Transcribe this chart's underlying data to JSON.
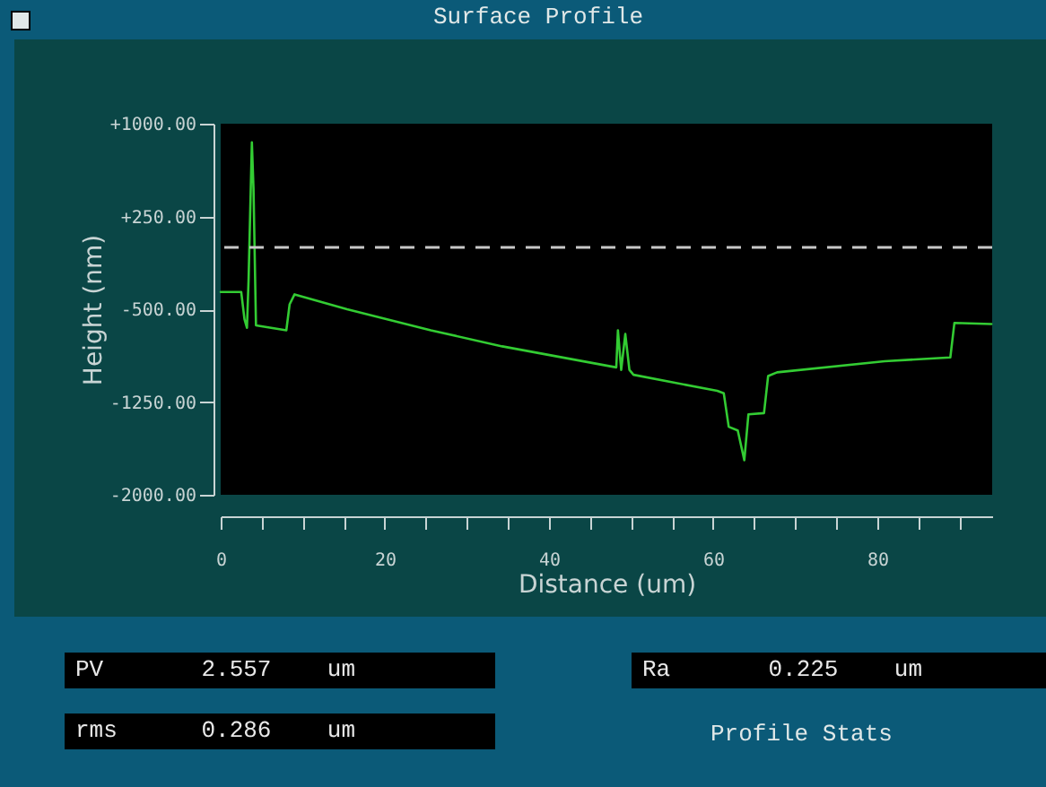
{
  "chart_data": {
    "type": "line",
    "title": "Surface Profile",
    "xlabel": "Distance (um)",
    "ylabel": "Height (nm)",
    "x": [
      0,
      2.5,
      2.9,
      3.2,
      3.4,
      3.8,
      4.0,
      4.3,
      8.0,
      8.4,
      9.0,
      15.4,
      25.6,
      34.3,
      48.2,
      48.4,
      48.8,
      49.3,
      49.8,
      50.3,
      60.5,
      61.3,
      61.9,
      63.0,
      63.8,
      64.3,
      66.2,
      66.7,
      67.8,
      80.9,
      88.9,
      89.4,
      93.9
    ],
    "series": [
      {
        "color": "#33cc33",
        "values": [
          -360,
          -360,
          -580,
          -650,
          -260,
          850,
          470,
          -630,
          -670,
          -460,
          -380,
          -500,
          -670,
          -800,
          -970,
          -670,
          -990,
          -700,
          -990,
          -1030,
          -1160,
          -1180,
          -1450,
          -1480,
          -1720,
          -1350,
          -1340,
          -1040,
          -1010,
          -920,
          -890,
          -610,
          -620
        ]
      }
    ],
    "xlim": [
      0,
      94
    ],
    "xticks": [
      0,
      {
        "value": 5,
        "label": null
      },
      {
        "value": 10,
        "label": null
      },
      {
        "value": 15,
        "label": null
      },
      20,
      {
        "value": 25,
        "label": null
      },
      {
        "value": 30,
        "label": null
      },
      {
        "value": 35,
        "label": null
      },
      40,
      {
        "value": 45,
        "label": null
      },
      {
        "value": 50,
        "label": null
      },
      {
        "value": 55,
        "label": null
      },
      60,
      {
        "value": 65,
        "label": null
      },
      {
        "value": 70,
        "label": null
      },
      {
        "value": 75,
        "label": null
      },
      80,
      {
        "value": 85,
        "label": null
      },
      {
        "value": 90,
        "label": null
      }
    ],
    "ylim": [
      -2000,
      1000
    ],
    "yticks": [
      {
        "value": 1000,
        "label": "+1000.00"
      },
      {
        "value": 250,
        "label": "+250.00"
      },
      {
        "value": -500,
        "label": "-500.00"
      },
      {
        "value": -1250,
        "label": "-1250.00"
      },
      {
        "value": -2000,
        "label": "-2000.00"
      }
    ],
    "ref_lines": [
      {
        "axis": "y",
        "value": 0,
        "color": "#c8c8c8",
        "line_style": "dashed"
      }
    ],
    "grid": false,
    "line_style": "solid",
    "marker": "none",
    "annotations": [
      "PV 2.557 um",
      "rms 0.286 um",
      "Ra 0.225 um",
      "Profile Stats"
    ]
  }
}
